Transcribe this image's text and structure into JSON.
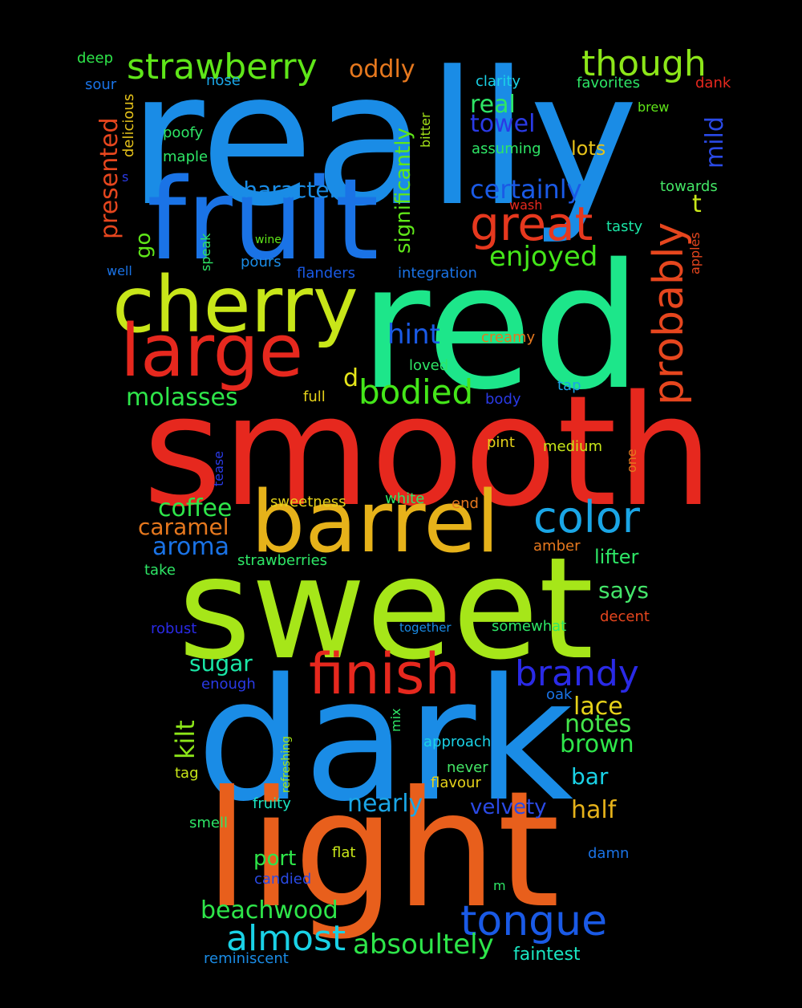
{
  "words": [
    {
      "text": "really",
      "color": "#1a8ce6"
    },
    {
      "text": "smooth",
      "color": "#e6281e"
    },
    {
      "text": "sweet",
      "color": "#a6e619"
    },
    {
      "text": "dark",
      "color": "#1a8ce6"
    },
    {
      "text": "red",
      "color": "#1de68a"
    },
    {
      "text": "light",
      "color": "#e85f1c"
    },
    {
      "text": "fruit",
      "color": "#1a73e6"
    },
    {
      "text": "cherry",
      "color": "#c8e619"
    },
    {
      "text": "barrel",
      "color": "#e6b21a"
    },
    {
      "text": "large",
      "color": "#e6281e"
    },
    {
      "text": "finish",
      "color": "#e6281e"
    },
    {
      "text": "great",
      "color": "#e6381e"
    },
    {
      "text": "probably",
      "color": "#e6461e"
    },
    {
      "text": "color",
      "color": "#1aa6e6"
    },
    {
      "text": "strawberry",
      "color": "#5fe619"
    },
    {
      "text": "though",
      "color": "#8ce619"
    },
    {
      "text": "bodied",
      "color": "#44e619"
    },
    {
      "text": "brandy",
      "color": "#2a2ae6"
    },
    {
      "text": "tongue",
      "color": "#1a5ae6"
    },
    {
      "text": "almost",
      "color": "#1ad2e6"
    },
    {
      "text": "absoultely",
      "color": "#2ee64a"
    },
    {
      "text": "enjoyed",
      "color": "#44e619"
    },
    {
      "text": "certainly",
      "color": "#1a5ae6"
    },
    {
      "text": "molasses",
      "color": "#2ee64a"
    },
    {
      "text": "coffee",
      "color": "#2ee64a"
    },
    {
      "text": "character",
      "color": "#1a8ce6"
    },
    {
      "text": "caramel",
      "color": "#e6781e"
    },
    {
      "text": "aroma",
      "color": "#1a73e6"
    },
    {
      "text": "beachwood",
      "color": "#2ee64a"
    },
    {
      "text": "hint",
      "color": "#1a5ae6"
    },
    {
      "text": "nearly",
      "color": "#1aa6e6"
    },
    {
      "text": "oddly",
      "color": "#e6781e"
    },
    {
      "text": "real",
      "color": "#2ee666"
    },
    {
      "text": "towel",
      "color": "#2a3ae6"
    },
    {
      "text": "presented",
      "color": "#e6461e"
    },
    {
      "text": "significantly",
      "color": "#5fe619"
    },
    {
      "text": "mild",
      "color": "#2a4ae6"
    },
    {
      "text": "sugar",
      "color": "#1ae6a6"
    },
    {
      "text": "kilt",
      "color": "#8ce619"
    },
    {
      "text": "lace",
      "color": "#e6d21a"
    },
    {
      "text": "notes",
      "color": "#44e64a"
    },
    {
      "text": "brown",
      "color": "#2ee64a"
    },
    {
      "text": "half",
      "color": "#e6b21a"
    },
    {
      "text": "bar",
      "color": "#1ad2e6"
    },
    {
      "text": "port",
      "color": "#2ee64a"
    },
    {
      "text": "velvety",
      "color": "#2a4ae6"
    },
    {
      "text": "faintest",
      "color": "#1ae6c2"
    },
    {
      "text": "lifter",
      "color": "#2ee666"
    },
    {
      "text": "says",
      "color": "#44e66a"
    },
    {
      "text": "lots",
      "color": "#e6c21a"
    },
    {
      "text": "go",
      "color": "#5fe619"
    },
    {
      "text": "t",
      "color": "#c8e619"
    },
    {
      "text": "d",
      "color": "#e6e61a"
    },
    {
      "text": "deep",
      "color": "#2ee64a"
    },
    {
      "text": "sour",
      "color": "#1a73e6"
    },
    {
      "text": "nose",
      "color": "#1aa6e6"
    },
    {
      "text": "delicious",
      "color": "#e6c21a"
    },
    {
      "text": "poofy",
      "color": "#2ee666"
    },
    {
      "text": "maple",
      "color": "#2ee666"
    },
    {
      "text": "s",
      "color": "#2a3ae6"
    },
    {
      "text": "clarity",
      "color": "#1ad2e6"
    },
    {
      "text": "favorites",
      "color": "#2ee666"
    },
    {
      "text": "dank",
      "color": "#e6281e"
    },
    {
      "text": "brew",
      "color": "#5fe619"
    },
    {
      "text": "bitter",
      "color": "#a6e619"
    },
    {
      "text": "assuming",
      "color": "#2ee666"
    },
    {
      "text": "towards",
      "color": "#44e666"
    },
    {
      "text": "wash",
      "color": "#e6281e"
    },
    {
      "text": "tasty",
      "color": "#1ae6a6"
    },
    {
      "text": "apples",
      "color": "#e6461e"
    },
    {
      "text": "speak",
      "color": "#2ee666"
    },
    {
      "text": "wine",
      "color": "#5fe619"
    },
    {
      "text": "pours",
      "color": "#1a8ce6"
    },
    {
      "text": "well",
      "color": "#1a73e6"
    },
    {
      "text": "flanders",
      "color": "#1a5ae6"
    },
    {
      "text": "integration",
      "color": "#1a73e6"
    },
    {
      "text": "creamy",
      "color": "#e6781e"
    },
    {
      "text": "loved",
      "color": "#2ee666"
    },
    {
      "text": "full",
      "color": "#e6d21a"
    },
    {
      "text": "body",
      "color": "#2a3ae6"
    },
    {
      "text": "tap",
      "color": "#1aa6e6"
    },
    {
      "text": "pint",
      "color": "#e6d21a"
    },
    {
      "text": "medium",
      "color": "#c8e619"
    },
    {
      "text": "one",
      "color": "#e6781e"
    },
    {
      "text": "tease",
      "color": "#2a3ae6"
    },
    {
      "text": "sweetness",
      "color": "#e6d21a"
    },
    {
      "text": "white",
      "color": "#2ee666"
    },
    {
      "text": "end",
      "color": "#e6781e"
    },
    {
      "text": "amber",
      "color": "#e6781e"
    },
    {
      "text": "strawberries",
      "color": "#2ee666"
    },
    {
      "text": "take",
      "color": "#2ee666"
    },
    {
      "text": "robust",
      "color": "#2a2ae6"
    },
    {
      "text": "together",
      "color": "#1a8ce6"
    },
    {
      "text": "somewhat",
      "color": "#2ee666"
    },
    {
      "text": "decent",
      "color": "#e6461e"
    },
    {
      "text": "enough",
      "color": "#2a3ae6"
    },
    {
      "text": "oak",
      "color": "#1a73e6"
    },
    {
      "text": "mix",
      "color": "#2ee666"
    },
    {
      "text": "refreshing",
      "color": "#a6e619"
    },
    {
      "text": "approach",
      "color": "#1ad2e6"
    },
    {
      "text": "tag",
      "color": "#c8e619"
    },
    {
      "text": "never",
      "color": "#44e666"
    },
    {
      "text": "flavour",
      "color": "#e6d21a"
    },
    {
      "text": "fruity",
      "color": "#1ae6c2"
    },
    {
      "text": "smell",
      "color": "#2ee666"
    },
    {
      "text": "flat",
      "color": "#c8e619"
    },
    {
      "text": "damn",
      "color": "#1a73e6"
    },
    {
      "text": "candied",
      "color": "#2a4ae6"
    },
    {
      "text": "m",
      "color": "#2ee666"
    },
    {
      "text": "reminiscent",
      "color": "#1a8ce6"
    }
  ]
}
